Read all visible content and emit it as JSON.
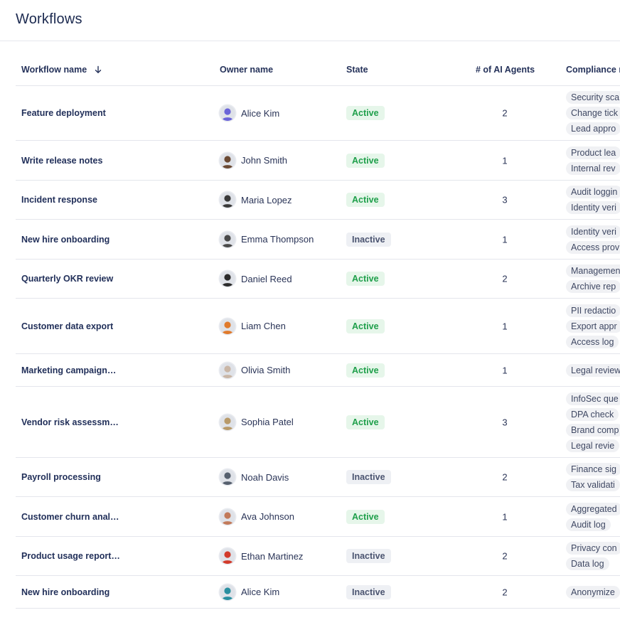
{
  "page": {
    "title": "Workflows"
  },
  "table": {
    "columns": {
      "workflow_name": "Workflow name",
      "owner_name": "Owner name",
      "state": "State",
      "agents": "# of AI Agents",
      "compliance": "Compliance r"
    },
    "sort_icon": "arrow-down-icon",
    "rows": [
      {
        "name": "Feature deployment",
        "owner": "Alice Kim",
        "state": "Active",
        "agents": "2",
        "compliance": [
          "Security sca",
          "Change tick",
          "Lead appro"
        ],
        "avatar_color": "#6a64d8"
      },
      {
        "name": "Write release notes",
        "owner": "John Smith",
        "state": "Active",
        "agents": "1",
        "compliance": [
          "Product lea",
          "Internal rev"
        ],
        "avatar_color": "#6b4a34"
      },
      {
        "name": "Incident response",
        "owner": "Maria Lopez",
        "state": "Active",
        "agents": "3",
        "compliance": [
          "Audit loggin",
          "Identity veri"
        ],
        "avatar_color": "#3a3a3a"
      },
      {
        "name": "New hire onboarding",
        "owner": "Emma Thompson",
        "state": "Inactive",
        "agents": "1",
        "compliance": [
          "Identity veri",
          "Access prov"
        ],
        "avatar_color": "#4a4a4a"
      },
      {
        "name": "Quarterly OKR review",
        "owner": "Daniel Reed",
        "state": "Active",
        "agents": "2",
        "compliance": [
          "Managemen",
          "Archive rep"
        ],
        "avatar_color": "#2b2b2b"
      },
      {
        "name": "Customer data export",
        "owner": "Liam Chen",
        "state": "Active",
        "agents": "1",
        "compliance": [
          "PII redactio",
          "Export appr",
          "Access log"
        ],
        "avatar_color": "#e07a2c"
      },
      {
        "name": "Marketing campaign…",
        "owner": "Olivia Smith",
        "state": "Active",
        "agents": "1",
        "compliance": [
          "Legal review"
        ],
        "avatar_color": "#c9b6a6"
      },
      {
        "name": "Vendor risk assessm…",
        "owner": "Sophia Patel",
        "state": "Active",
        "agents": "3",
        "compliance": [
          "InfoSec que",
          "DPA check",
          "Brand comp",
          "Legal revie"
        ],
        "avatar_color": "#b89a6a"
      },
      {
        "name": "Payroll processing",
        "owner": "Noah Davis",
        "state": "Inactive",
        "agents": "2",
        "compliance": [
          "Finance sig",
          "Tax validati"
        ],
        "avatar_color": "#56606e"
      },
      {
        "name": "Customer churn anal…",
        "owner": "Ava Johnson",
        "state": "Active",
        "agents": "1",
        "compliance": [
          "Aggregated",
          "Audit log"
        ],
        "avatar_color": "#c27a5a"
      },
      {
        "name": "Product usage report…",
        "owner": "Ethan Martinez",
        "state": "Inactive",
        "agents": "2",
        "compliance": [
          "Privacy con",
          "Data log"
        ],
        "avatar_color": "#d23a2a"
      },
      {
        "name": "New hire onboarding",
        "owner": "Alice Kim",
        "state": "Inactive",
        "agents": "2",
        "compliance": [
          "Anonymize"
        ],
        "avatar_color": "#2a8fa0"
      }
    ]
  }
}
